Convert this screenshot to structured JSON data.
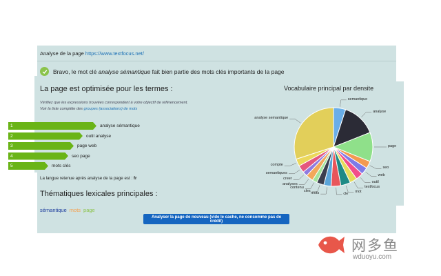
{
  "header": {
    "analyse_prefix": "Analyse de la page",
    "analyse_url": "https://www.textfocus.net/"
  },
  "status": {
    "bravo_1": "Bravo, le mot clé",
    "bravo_kw": "analyse sémantique",
    "bravo_2": "fait bien partie des mots clés importants de la page"
  },
  "terms": {
    "heading": "La page est optimisée pour les termes :",
    "note": "Vérifiez que les expressions trouvées correspondent à votre objectif de référencement.",
    "list_prefix": "Voir la liste complète des",
    "list_link": "groupes (associations) de mots",
    "items": [
      {
        "rank": "1",
        "label": "analyse sémantique",
        "strength": 1.0
      },
      {
        "rank": "2",
        "label": "outil analyse",
        "strength": 0.84
      },
      {
        "rank": "3",
        "label": "page web",
        "strength": 0.74
      },
      {
        "rank": "4",
        "label": "seo page",
        "strength": 0.68
      },
      {
        "rank": "5",
        "label": "mots clés",
        "strength": 0.45
      }
    ]
  },
  "language": {
    "text": "La langue retenue après analyse de la page est :",
    "code": "fr"
  },
  "themes": {
    "heading": "Thématiques lexicales principales :",
    "tags": [
      {
        "label": "sémantique",
        "color": "#1a3a9c"
      },
      {
        "label": "mots",
        "color": "#f5a04d"
      },
      {
        "label": "page",
        "color": "#8bc34a"
      }
    ]
  },
  "action": {
    "reanalyse_label": "Analyser la page de nouveau (vide le cache, ne consomme pas de crédit)"
  },
  "chart_data": {
    "type": "pie",
    "title": "Vocabulaire principal par densite",
    "slices": [
      {
        "label": "semantique",
        "value": 5,
        "color": "#6aaee8"
      },
      {
        "label": "analyse",
        "value": 14,
        "color": "#2b2b36"
      },
      {
        "label": "page",
        "value": 12,
        "color": "#8fe08a"
      },
      {
        "label": "seo",
        "value": 3,
        "color": "#f39a4f"
      },
      {
        "label": "web",
        "value": 3,
        "color": "#7e7ae8"
      },
      {
        "label": "outil",
        "value": 3,
        "color": "#f24f8a"
      },
      {
        "label": "textfocus",
        "value": 3,
        "color": "#e4dc5a"
      },
      {
        "label": "mot",
        "value": 4,
        "color": "#1e8a86"
      },
      {
        "label": "cle",
        "value": 4,
        "color": "#e8555a"
      },
      {
        "label": "mots",
        "value": 3,
        "color": "#5aa4d8"
      },
      {
        "label": "cles",
        "value": 3,
        "color": "#3b3f4e"
      },
      {
        "label": "contenu",
        "value": 2,
        "color": "#a3e39a"
      },
      {
        "label": "analyses",
        "value": 3,
        "color": "#f2a85a"
      },
      {
        "label": "creer",
        "value": 2,
        "color": "#8f7be0"
      },
      {
        "label": "semantiques",
        "value": 3,
        "color": "#e4577e"
      },
      {
        "label": "compte",
        "value": 3,
        "color": "#ebd85a"
      },
      {
        "label": "analyse semantique",
        "value": 30,
        "color": "#e2cf5a"
      }
    ]
  },
  "watermark": {
    "cn": "网多鱼",
    "url": "wduoyu.com"
  }
}
